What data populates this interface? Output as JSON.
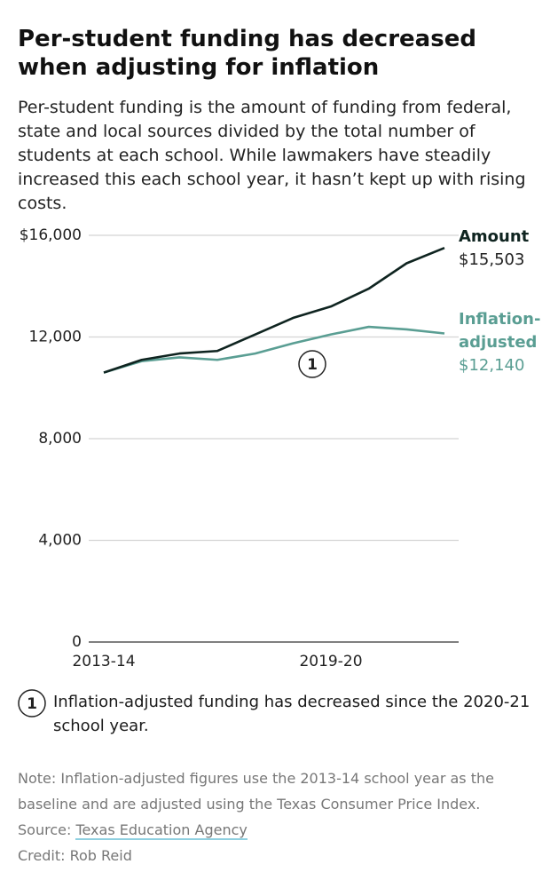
{
  "chart_data": {
    "type": "line",
    "title": "Per-student funding has decreased when adjusting for inflation",
    "subtitle": "Per-student funding is the amount of funding from federal, state and local sources divided by the total number of students at each school. While lawmakers have steadily increased this each school year, it hasn’t kept up with rising costs.",
    "categories": [
      "2013-14",
      null,
      null,
      null,
      null,
      null,
      "2019-20",
      null,
      null,
      null
    ],
    "series": [
      {
        "name": "Amount",
        "color": "#0f2420",
        "values": [
          10600,
          11100,
          11350,
          11450,
          12100,
          12750,
          13200,
          13900,
          14900,
          15503
        ],
        "value_labels": [
          null,
          null,
          null,
          null,
          null,
          null,
          null,
          null,
          null,
          "$15,503"
        ]
      },
      {
        "name": "Inflation-adjusted",
        "color": "#5a9e93",
        "values": [
          10600,
          11050,
          11200,
          11100,
          11350,
          11750,
          12100,
          12400,
          12300,
          12140
        ],
        "value_labels": [
          null,
          null,
          null,
          null,
          null,
          null,
          null,
          null,
          null,
          "$12,140"
        ]
      }
    ],
    "ylim": [
      0,
      16000
    ],
    "yticks": [
      0,
      {
        "value": 4000,
        "label": "4,000"
      },
      {
        "value": 8000,
        "label": "8,000"
      },
      {
        "value": 12000,
        "label": "12,000"
      },
      {
        "value": 16000,
        "label": "$16,000"
      }
    ],
    "grid": true,
    "annotation": {
      "label": "1",
      "text": "Inflation-adjusted funding has decreased since the 2020-21 school year."
    },
    "note": "Note: Inflation-adjusted figures use the 2013-14 school year as the baseline and are adjusted using the Texas Consumer Price Index.",
    "source": {
      "label": "Source:",
      "name": "Texas Education Agency"
    },
    "credit": "Credit: Rob Reid"
  }
}
